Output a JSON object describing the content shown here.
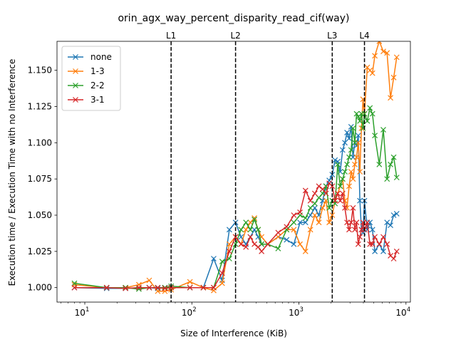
{
  "chart_data": {
    "type": "line",
    "title": "orin_agx_way_percent_disparity_read_cif(way)",
    "xlabel": "Size of Interference (KiB)",
    "ylabel": "Execution time / Execution Time with no Interference",
    "xscale": "log",
    "xlim": [
      5.5,
      11000
    ],
    "ylim": [
      0.99,
      1.17
    ],
    "x_ticks": [
      {
        "value": 10,
        "base": "10",
        "exp": "1"
      },
      {
        "value": 100,
        "base": "10",
        "exp": "2"
      },
      {
        "value": 1000,
        "base": "10",
        "exp": "3"
      },
      {
        "value": 10000,
        "base": "10",
        "exp": "4"
      }
    ],
    "y_ticks": [
      {
        "value": 1.0,
        "label": "1.000"
      },
      {
        "value": 1.025,
        "label": "1.025"
      },
      {
        "value": 1.05,
        "label": "1.050"
      },
      {
        "value": 1.075,
        "label": "1.075"
      },
      {
        "value": 1.1,
        "label": "1.100"
      },
      {
        "value": 1.125,
        "label": "1.125"
      },
      {
        "value": 1.15,
        "label": "1.150"
      }
    ],
    "vlines": [
      {
        "label": "L1",
        "x": 64
      },
      {
        "label": "L2",
        "x": 256
      },
      {
        "label": "L3",
        "x": 2048
      },
      {
        "label": "L4",
        "x": 4096
      }
    ],
    "legend_position": "upper-left",
    "series": [
      {
        "name": "none",
        "color": "#1f77b4",
        "points": [
          [
            8,
            1.0
          ],
          [
            16,
            0.9995
          ],
          [
            24,
            0.9995
          ],
          [
            32,
            1.0
          ],
          [
            40,
            1.0
          ],
          [
            48,
            0.9995
          ],
          [
            56,
            1.0
          ],
          [
            64,
            1.0
          ],
          [
            96,
            1.0
          ],
          [
            128,
            1.0
          ],
          [
            160,
            1.02
          ],
          [
            192,
            1.005
          ],
          [
            224,
            1.04
          ],
          [
            256,
            1.045
          ],
          [
            288,
            1.035
          ],
          [
            320,
            1.03
          ],
          [
            352,
            1.035
          ],
          [
            384,
            1.04
          ],
          [
            416,
            1.035
          ],
          [
            448,
            1.03
          ],
          [
            512,
            1.03
          ],
          [
            640,
            1.035
          ],
          [
            768,
            1.033
          ],
          [
            896,
            1.03
          ],
          [
            1024,
            1.045
          ],
          [
            1152,
            1.045
          ],
          [
            1280,
            1.05
          ],
          [
            1408,
            1.055
          ],
          [
            1536,
            1.05
          ],
          [
            1664,
            1.06
          ],
          [
            1792,
            1.07
          ],
          [
            1920,
            1.074
          ],
          [
            2048,
            1.078
          ],
          [
            2176,
            1.088
          ],
          [
            2304,
            1.087
          ],
          [
            2432,
            1.08
          ],
          [
            2560,
            1.095
          ],
          [
            2688,
            1.1
          ],
          [
            2816,
            1.107
          ],
          [
            2944,
            1.103
          ],
          [
            3072,
            1.111
          ],
          [
            3200,
            1.09
          ],
          [
            3328,
            1.1
          ],
          [
            3456,
            1.098
          ],
          [
            3584,
            1.105
          ],
          [
            3712,
            1.06
          ],
          [
            3840,
            1.04
          ],
          [
            3968,
            1.038
          ],
          [
            4096,
            1.06
          ],
          [
            4352,
            1.04
          ],
          [
            4608,
            1.045
          ],
          [
            4864,
            1.04
          ],
          [
            5120,
            1.025
          ],
          [
            5632,
            1.03
          ],
          [
            6144,
            1.025
          ],
          [
            6656,
            1.045
          ],
          [
            7168,
            1.043
          ],
          [
            7680,
            1.05
          ],
          [
            8192,
            1.051
          ]
        ]
      },
      {
        "name": "1-3",
        "color": "#ff7f0e",
        "points": [
          [
            8,
            1.002
          ],
          [
            16,
            1.0
          ],
          [
            24,
            1.0
          ],
          [
            32,
            1.002
          ],
          [
            40,
            1.005
          ],
          [
            48,
            0.9975
          ],
          [
            56,
            0.9975
          ],
          [
            64,
            0.9985
          ],
          [
            96,
            1.004
          ],
          [
            128,
            1.0
          ],
          [
            160,
            0.998
          ],
          [
            192,
            1.003
          ],
          [
            224,
            1.03
          ],
          [
            256,
            1.035
          ],
          [
            288,
            1.03
          ],
          [
            320,
            1.04
          ],
          [
            352,
            1.045
          ],
          [
            384,
            1.048
          ],
          [
            416,
            1.04
          ],
          [
            448,
            1.035
          ],
          [
            512,
            1.03
          ],
          [
            640,
            1.035
          ],
          [
            768,
            1.04
          ],
          [
            896,
            1.04
          ],
          [
            1024,
            1.03
          ],
          [
            1152,
            1.025
          ],
          [
            1280,
            1.04
          ],
          [
            1408,
            1.05
          ],
          [
            1536,
            1.045
          ],
          [
            1664,
            1.055
          ],
          [
            1792,
            1.06
          ],
          [
            1920,
            1.045
          ],
          [
            2048,
            1.05
          ],
          [
            2176,
            1.06
          ],
          [
            2304,
            1.065
          ],
          [
            2432,
            1.07
          ],
          [
            2560,
            1.075
          ],
          [
            2688,
            1.06
          ],
          [
            2816,
            1.055
          ],
          [
            2944,
            1.07
          ],
          [
            3072,
            1.08
          ],
          [
            3200,
            1.075
          ],
          [
            3328,
            1.085
          ],
          [
            3456,
            1.09
          ],
          [
            3584,
            1.1
          ],
          [
            3712,
            1.08
          ],
          [
            3840,
            1.11
          ],
          [
            3968,
            1.13
          ],
          [
            4096,
            1.12
          ],
          [
            4352,
            1.152
          ],
          [
            4608,
            1.15
          ],
          [
            4864,
            1.148
          ],
          [
            5120,
            1.16
          ],
          [
            5632,
            1.17
          ],
          [
            6144,
            1.163
          ],
          [
            6656,
            1.162
          ],
          [
            7168,
            1.131
          ],
          [
            7680,
            1.145
          ],
          [
            8192,
            1.159
          ]
        ]
      },
      {
        "name": "2-2",
        "color": "#2ca02c",
        "points": [
          [
            8,
            1.003
          ],
          [
            16,
            1.0
          ],
          [
            24,
            1.0
          ],
          [
            32,
            0.999
          ],
          [
            40,
            1.0
          ],
          [
            48,
            1.0
          ],
          [
            56,
            1.0
          ],
          [
            64,
            1.001
          ],
          [
            96,
            1.0
          ],
          [
            128,
            1.0
          ],
          [
            160,
            1.0
          ],
          [
            192,
            1.018
          ],
          [
            224,
            1.02
          ],
          [
            256,
            1.03
          ],
          [
            288,
            1.04
          ],
          [
            320,
            1.045
          ],
          [
            352,
            1.04
          ],
          [
            384,
            1.047
          ],
          [
            416,
            1.04
          ],
          [
            448,
            1.03
          ],
          [
            512,
            1.03
          ],
          [
            640,
            1.027
          ],
          [
            768,
            1.04
          ],
          [
            896,
            1.045
          ],
          [
            1024,
            1.05
          ],
          [
            1152,
            1.048
          ],
          [
            1280,
            1.055
          ],
          [
            1408,
            1.058
          ],
          [
            1536,
            1.062
          ],
          [
            1664,
            1.065
          ],
          [
            1792,
            1.07
          ],
          [
            1920,
            1.055
          ],
          [
            2048,
            1.06
          ],
          [
            2176,
            1.058
          ],
          [
            2304,
            1.085
          ],
          [
            2432,
            1.07
          ],
          [
            2560,
            1.075
          ],
          [
            2688,
            1.08
          ],
          [
            2816,
            1.085
          ],
          [
            2944,
            1.09
          ],
          [
            3072,
            1.095
          ],
          [
            3200,
            1.11
          ],
          [
            3328,
            1.1
          ],
          [
            3456,
            1.12
          ],
          [
            3584,
            1.118
          ],
          [
            3712,
            1.115
          ],
          [
            3840,
            1.12
          ],
          [
            3968,
            1.11
          ],
          [
            4096,
            1.12
          ],
          [
            4352,
            1.115
          ],
          [
            4608,
            1.124
          ],
          [
            4864,
            1.12
          ],
          [
            5120,
            1.105
          ],
          [
            5632,
            1.085
          ],
          [
            6144,
            1.109
          ],
          [
            6656,
            1.075
          ],
          [
            7168,
            1.085
          ],
          [
            7680,
            1.09
          ],
          [
            8192,
            1.076
          ]
        ]
      },
      {
        "name": "3-1",
        "color": "#d62728",
        "points": [
          [
            8,
            1.0
          ],
          [
            16,
            1.0
          ],
          [
            24,
            0.9995
          ],
          [
            32,
            1.0
          ],
          [
            40,
            1.0
          ],
          [
            48,
            1.0
          ],
          [
            56,
            0.9995
          ],
          [
            64,
            1.0
          ],
          [
            96,
            1.0
          ],
          [
            128,
            1.0
          ],
          [
            160,
            1.0
          ],
          [
            192,
            1.01
          ],
          [
            224,
            1.025
          ],
          [
            256,
            1.035
          ],
          [
            288,
            1.03
          ],
          [
            320,
            1.028
          ],
          [
            352,
            1.035
          ],
          [
            384,
            1.03
          ],
          [
            416,
            1.028
          ],
          [
            448,
            1.025
          ],
          [
            512,
            1.03
          ],
          [
            640,
            1.038
          ],
          [
            768,
            1.042
          ],
          [
            896,
            1.05
          ],
          [
            1024,
            1.052
          ],
          [
            1152,
            1.067
          ],
          [
            1280,
            1.06
          ],
          [
            1408,
            1.065
          ],
          [
            1536,
            1.07
          ],
          [
            1664,
            1.068
          ],
          [
            1792,
            1.065
          ],
          [
            1920,
            1.072
          ],
          [
            2048,
            1.07
          ],
          [
            2176,
            1.06
          ],
          [
            2304,
            1.065
          ],
          [
            2432,
            1.06
          ],
          [
            2560,
            1.065
          ],
          [
            2688,
            1.055
          ],
          [
            2816,
            1.045
          ],
          [
            2944,
            1.04
          ],
          [
            3072,
            1.045
          ],
          [
            3200,
            1.055
          ],
          [
            3328,
            1.04
          ],
          [
            3456,
            1.045
          ],
          [
            3584,
            1.03
          ],
          [
            3712,
            1.035
          ],
          [
            3840,
            1.04
          ],
          [
            3968,
            1.045
          ],
          [
            4096,
            1.04
          ],
          [
            4352,
            1.045
          ],
          [
            4608,
            1.03
          ],
          [
            4864,
            1.03
          ],
          [
            5120,
            1.035
          ],
          [
            5632,
            1.03
          ],
          [
            6144,
            1.035
          ],
          [
            6656,
            1.03
          ],
          [
            7168,
            1.022
          ],
          [
            7680,
            1.02
          ],
          [
            8192,
            1.025
          ]
        ]
      }
    ]
  }
}
